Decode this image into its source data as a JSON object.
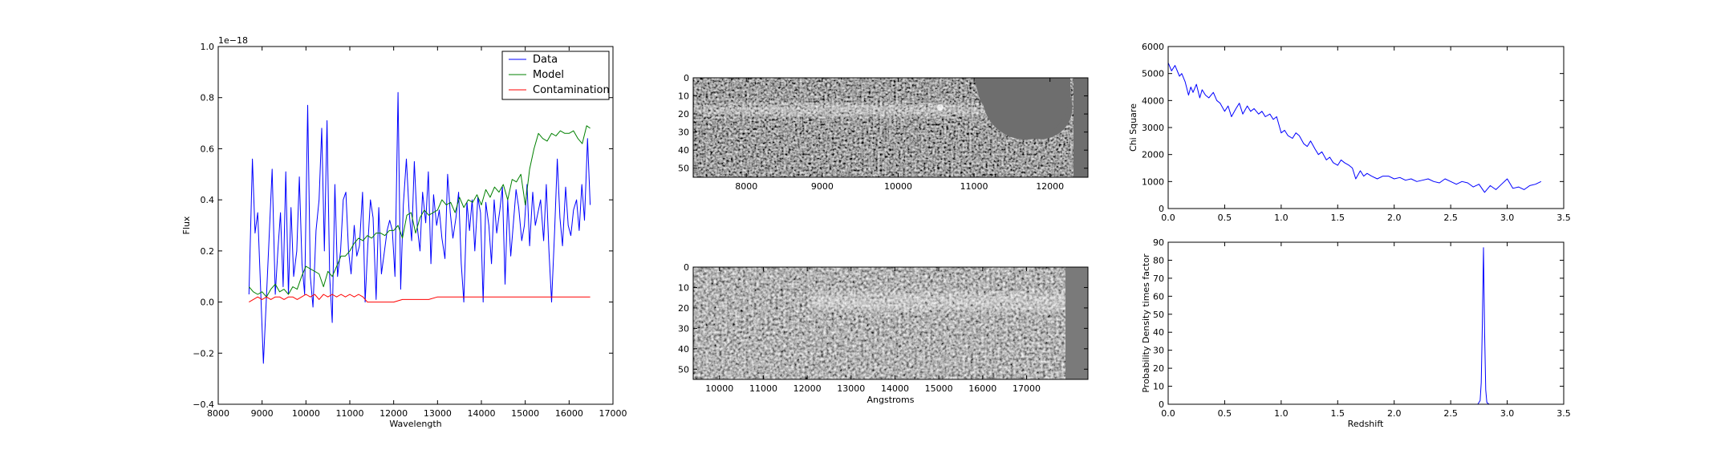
{
  "chart_data": [
    {
      "id": "spectrum",
      "type": "line",
      "xlabel": "Wavelength",
      "ylabel": "Flux",
      "offset_label": "1e−18",
      "xlim": [
        8000,
        17000
      ],
      "ylim": [
        -0.4,
        1.0
      ],
      "xticks": [
        "8000",
        "9000",
        "10000",
        "11000",
        "12000",
        "13000",
        "14000",
        "15000",
        "16000",
        "17000"
      ],
      "yticks": [
        "−0.4",
        "−0.2",
        "0.0",
        "0.2",
        "0.4",
        "0.6",
        "0.8",
        "1.0"
      ],
      "legend_position": "top-right",
      "series": [
        {
          "name": "Data",
          "color": "#0000ff",
          "x": [
            8700,
            8780,
            8840,
            8900,
            8960,
            9030,
            9100,
            9160,
            9230,
            9300,
            9360,
            9420,
            9480,
            9540,
            9600,
            9660,
            9720,
            9790,
            9850,
            9910,
            9970,
            10040,
            10100,
            10160,
            10230,
            10300,
            10360,
            10420,
            10480,
            10540,
            10600,
            10660,
            10720,
            10790,
            10850,
            10910,
            10970,
            11030,
            11100,
            11160,
            11220,
            11290,
            11350,
            11410,
            11470,
            11530,
            11600,
            11660,
            11720,
            11790,
            11850,
            11910,
            11970,
            12030,
            12100,
            12160,
            12220,
            12290,
            12350,
            12410,
            12470,
            12540,
            12600,
            12660,
            12730,
            12790,
            12850,
            12910,
            12980,
            13040,
            13100,
            13170,
            13230,
            13290,
            13350,
            13420,
            13480,
            13540,
            13600,
            13670,
            13730,
            13790,
            13850,
            13920,
            13980,
            14040,
            14100,
            14170,
            14230,
            14290,
            14350,
            14420,
            14480,
            14540,
            14600,
            14670,
            14730,
            14790,
            14850,
            14920,
            14980,
            15040,
            15100,
            15170,
            15230,
            15290,
            15350,
            15420,
            15480,
            15540,
            15600,
            15670,
            15730,
            15790,
            15850,
            15920,
            15980,
            16040,
            16100,
            16170,
            16230,
            16290,
            16350,
            16420,
            16480
          ],
          "y": [
            0.03,
            0.56,
            0.27,
            0.35,
            0.08,
            -0.24,
            0.02,
            0.25,
            0.52,
            0.03,
            0.2,
            0.35,
            0.06,
            0.51,
            0.03,
            0.37,
            0.1,
            0.2,
            0.49,
            0.15,
            0.03,
            0.77,
            0.1,
            -0.02,
            0.28,
            0.4,
            0.68,
            0.2,
            0.71,
            0.1,
            -0.08,
            0.46,
            0.1,
            0.2,
            0.4,
            0.43,
            0.2,
            0.11,
            0.3,
            0.18,
            0.22,
            0.43,
            0.0,
            0.22,
            0.4,
            0.33,
            0.01,
            0.37,
            0.11,
            0.2,
            0.28,
            0.32,
            0.28,
            0.1,
            0.82,
            0.05,
            0.38,
            0.56,
            0.36,
            0.24,
            0.55,
            0.29,
            0.2,
            0.43,
            0.31,
            0.51,
            0.15,
            0.42,
            0.3,
            0.36,
            0.25,
            0.17,
            0.5,
            0.35,
            0.25,
            0.33,
            0.43,
            0.15,
            0.0,
            0.39,
            0.28,
            0.4,
            0.2,
            0.41,
            0.35,
            0.0,
            0.39,
            0.3,
            0.15,
            0.4,
            0.27,
            0.36,
            0.45,
            0.07,
            0.4,
            0.18,
            0.31,
            0.44,
            0.37,
            0.24,
            0.3,
            0.46,
            0.22,
            0.43,
            0.3,
            0.35,
            0.4,
            0.24,
            0.46,
            0.2,
            0.0,
            0.28,
            0.56,
            0.33,
            0.22,
            0.45,
            0.3,
            0.26,
            0.36,
            0.4,
            0.28,
            0.46,
            0.32,
            0.64,
            0.38
          ]
        },
        {
          "name": "Model",
          "color": "#008000",
          "x": [
            8700,
            8800,
            8900,
            9000,
            9100,
            9200,
            9300,
            9400,
            9500,
            9600,
            9700,
            9800,
            9900,
            10000,
            10100,
            10200,
            10300,
            10400,
            10500,
            10600,
            10700,
            10800,
            10900,
            11000,
            11100,
            11200,
            11300,
            11400,
            11500,
            11600,
            11700,
            11800,
            11900,
            12000,
            12100,
            12200,
            12300,
            12400,
            12500,
            12600,
            12700,
            12800,
            12900,
            13000,
            13100,
            13200,
            13300,
            13400,
            13500,
            13600,
            13700,
            13800,
            13900,
            14000,
            14100,
            14200,
            14300,
            14400,
            14500,
            14600,
            14700,
            14800,
            14900,
            15000,
            15100,
            15200,
            15300,
            15400,
            15500,
            15600,
            15700,
            15800,
            15900,
            16000,
            16100,
            16200,
            16300,
            16400,
            16480
          ],
          "y": [
            0.06,
            0.04,
            0.03,
            0.04,
            0.02,
            0.05,
            0.07,
            0.04,
            0.05,
            0.03,
            0.06,
            0.05,
            0.1,
            0.14,
            0.13,
            0.12,
            0.11,
            0.06,
            0.12,
            0.1,
            0.14,
            0.18,
            0.18,
            0.2,
            0.23,
            0.25,
            0.24,
            0.26,
            0.25,
            0.27,
            0.27,
            0.26,
            0.28,
            0.28,
            0.3,
            0.25,
            0.34,
            0.35,
            0.27,
            0.33,
            0.36,
            0.34,
            0.35,
            0.36,
            0.4,
            0.38,
            0.39,
            0.35,
            0.41,
            0.37,
            0.4,
            0.39,
            0.42,
            0.38,
            0.44,
            0.41,
            0.45,
            0.43,
            0.46,
            0.4,
            0.48,
            0.47,
            0.5,
            0.38,
            0.52,
            0.6,
            0.66,
            0.64,
            0.63,
            0.66,
            0.65,
            0.67,
            0.66,
            0.66,
            0.67,
            0.64,
            0.62,
            0.69,
            0.68
          ]
        },
        {
          "name": "Contamination",
          "color": "#ff0000",
          "x": [
            8700,
            8800,
            8900,
            9000,
            9100,
            9200,
            9300,
            9400,
            9500,
            9600,
            9700,
            9800,
            9900,
            10000,
            10100,
            10200,
            10300,
            10400,
            10500,
            10600,
            10700,
            10800,
            10900,
            11000,
            11100,
            11200,
            11300,
            11400,
            11500,
            11600,
            11800,
            12000,
            12200,
            12400,
            12600,
            12800,
            13000,
            13200,
            13400,
            13600,
            13800,
            14000,
            14200,
            14400,
            14600,
            14800,
            15000,
            15200,
            15400,
            15600,
            15800,
            16000,
            16200,
            16480
          ],
          "y": [
            0.0,
            0.01,
            0.02,
            0.01,
            0.02,
            0.01,
            0.02,
            0.02,
            0.01,
            0.02,
            0.02,
            0.01,
            0.02,
            0.03,
            0.02,
            0.03,
            0.01,
            0.03,
            0.02,
            0.03,
            0.02,
            0.03,
            0.02,
            0.03,
            0.02,
            0.03,
            0.02,
            0.0,
            0.0,
            0.0,
            0.0,
            0.0,
            0.01,
            0.01,
            0.01,
            0.01,
            0.02,
            0.02,
            0.02,
            0.02,
            0.02,
            0.02,
            0.02,
            0.02,
            0.02,
            0.02,
            0.02,
            0.02,
            0.02,
            0.02,
            0.02,
            0.02,
            0.02,
            0.02
          ]
        }
      ]
    },
    {
      "id": "image-top",
      "type": "heatmap",
      "colormap": "gray",
      "xlim": [
        7300,
        12500
      ],
      "ylim": [
        55,
        0
      ],
      "xticks": [
        "8000",
        "9000",
        "10000",
        "11000",
        "12000"
      ],
      "yticks": [
        "0",
        "10",
        "20",
        "30",
        "40",
        "50"
      ],
      "trace_band_rows": [
        13,
        22
      ],
      "masked_region": "grey circular mask at right end (~11000–12400 Å)"
    },
    {
      "id": "image-bottom",
      "type": "heatmap",
      "colormap": "gray",
      "xlabel": "Angstroms",
      "xlim": [
        9400,
        18400
      ],
      "ylim": [
        55,
        0
      ],
      "xticks": [
        "10000",
        "11000",
        "12000",
        "13000",
        "14000",
        "15000",
        "16000",
        "17000"
      ],
      "yticks": [
        "0",
        "10",
        "20",
        "30",
        "40",
        "50"
      ],
      "trace_band_rows": [
        14,
        24
      ],
      "trace_start": 12000,
      "masked_region": "grey strip beyond ~17800 Å"
    },
    {
      "id": "chi-square",
      "type": "line",
      "ylabel": "Chi Square",
      "xlim": [
        0.0,
        3.5
      ],
      "ylim": [
        0,
        6000
      ],
      "xticks": [
        "0.0",
        "0.5",
        "1.0",
        "1.5",
        "2.0",
        "2.5",
        "3.0",
        "3.5"
      ],
      "yticks": [
        "0",
        "1000",
        "2000",
        "3000",
        "4000",
        "5000",
        "6000"
      ],
      "series": [
        {
          "color": "#0000ff",
          "x": [
            0.0,
            0.03,
            0.06,
            0.1,
            0.12,
            0.15,
            0.18,
            0.2,
            0.22,
            0.25,
            0.28,
            0.3,
            0.33,
            0.36,
            0.4,
            0.43,
            0.46,
            0.5,
            0.53,
            0.56,
            0.6,
            0.63,
            0.66,
            0.7,
            0.73,
            0.76,
            0.8,
            0.83,
            0.86,
            0.9,
            0.93,
            0.96,
            1.0,
            1.03,
            1.06,
            1.1,
            1.13,
            1.16,
            1.2,
            1.23,
            1.26,
            1.3,
            1.33,
            1.36,
            1.4,
            1.43,
            1.46,
            1.5,
            1.53,
            1.56,
            1.6,
            1.63,
            1.66,
            1.7,
            1.73,
            1.76,
            1.8,
            1.85,
            1.9,
            1.95,
            2.0,
            2.05,
            2.1,
            2.15,
            2.2,
            2.25,
            2.3,
            2.35,
            2.4,
            2.45,
            2.5,
            2.55,
            2.6,
            2.65,
            2.7,
            2.75,
            2.8,
            2.85,
            2.9,
            2.95,
            3.0,
            3.05,
            3.1,
            3.15,
            3.2,
            3.25,
            3.3
          ],
          "y": [
            5400,
            5100,
            5300,
            4900,
            5000,
            4700,
            4200,
            4500,
            4300,
            4600,
            4100,
            4400,
            4200,
            4100,
            4300,
            4000,
            3900,
            3600,
            3800,
            3400,
            3700,
            3900,
            3500,
            3800,
            3600,
            3700,
            3500,
            3600,
            3400,
            3500,
            3300,
            3400,
            2800,
            2900,
            2700,
            2600,
            2800,
            2700,
            2400,
            2300,
            2500,
            2200,
            2000,
            2100,
            1800,
            1900,
            1700,
            1600,
            1800,
            1700,
            1600,
            1500,
            1100,
            1400,
            1200,
            1300,
            1200,
            1100,
            1200,
            1200,
            1100,
            1150,
            1050,
            1100,
            1000,
            1050,
            1100,
            1000,
            950,
            1100,
            1000,
            900,
            1000,
            950,
            800,
            900,
            600,
            850,
            700,
            900,
            1100,
            750,
            800,
            700,
            850,
            900,
            1000
          ]
        }
      ]
    },
    {
      "id": "pdf",
      "type": "line",
      "xlabel": "Redshift",
      "ylabel": "Probability Density times factor",
      "xlim": [
        0.0,
        3.5
      ],
      "ylim": [
        0,
        90
      ],
      "xticks": [
        "0.0",
        "0.5",
        "1.0",
        "1.5",
        "2.0",
        "2.5",
        "3.0",
        "3.5"
      ],
      "yticks": [
        "0",
        "10",
        "20",
        "30",
        "40",
        "50",
        "60",
        "70",
        "80",
        "90"
      ],
      "series": [
        {
          "color": "#0000ff",
          "x": [
            0.0,
            2.74,
            2.76,
            2.77,
            2.78,
            2.79,
            2.8,
            2.81,
            2.82,
            2.84,
            3.3
          ],
          "y": [
            0,
            0,
            2,
            12,
            45,
            87,
            40,
            8,
            1,
            0,
            0
          ]
        }
      ]
    }
  ]
}
